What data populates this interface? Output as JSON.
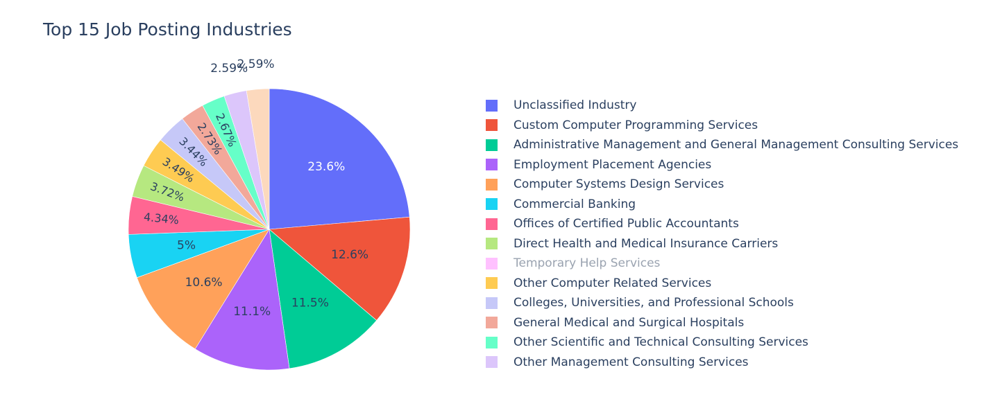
{
  "chart_data": {
    "type": "pie",
    "title": "Top 15 Job Posting Industries",
    "legend_position": "right",
    "direction": "clockwise",
    "sort": "descending",
    "slices": [
      {
        "label": "Unclassified Industry",
        "value": 23.6,
        "text": "23.6%",
        "color": "#636efa",
        "textcolor": "#ffffff",
        "visible": true
      },
      {
        "label": "Custom Computer Programming Services",
        "value": 12.6,
        "text": "12.6%",
        "color": "#EF553B",
        "textcolor": "#2a3f5f",
        "visible": true
      },
      {
        "label": "Administrative Management and General Management Consulting Services",
        "value": 11.5,
        "text": "11.5%",
        "color": "#00cc96",
        "textcolor": "#2a3f5f",
        "visible": true
      },
      {
        "label": "Employment Placement Agencies",
        "value": 11.1,
        "text": "11.1%",
        "color": "#ab63fa",
        "textcolor": "#2a3f5f",
        "visible": true
      },
      {
        "label": "Computer Systems Design Services",
        "value": 10.6,
        "text": "10.6%",
        "color": "#FFA15A",
        "textcolor": "#2a3f5f",
        "visible": true
      },
      {
        "label": "Commercial Banking",
        "value": 5.0,
        "text": "5%",
        "color": "#19d3f3",
        "textcolor": "#2a3f5f",
        "visible": true
      },
      {
        "label": "Offices of Certified Public Accountants",
        "value": 4.34,
        "text": "4.34%",
        "color": "#FF6692",
        "textcolor": "#2a3f5f",
        "visible": true
      },
      {
        "label": "Direct Health and Medical Insurance Carriers",
        "value": 3.72,
        "text": "3.72%",
        "color": "#B6E880",
        "textcolor": "#2a3f5f",
        "visible": true
      },
      {
        "label": "Temporary Help Services",
        "value": 0,
        "text": "",
        "color": "#FF97FF",
        "textcolor": "#2a3f5f",
        "visible": false
      },
      {
        "label": "Other Computer Related Services",
        "value": 3.49,
        "text": "3.49%",
        "color": "#FECB52",
        "textcolor": "#2a3f5f",
        "visible": true
      },
      {
        "label": "Colleges, Universities, and Professional Schools",
        "value": 3.44,
        "text": "3.44%",
        "color": "#c6c8f8",
        "textcolor": "#2a3f5f",
        "visible": true
      },
      {
        "label": "General Medical and Surgical Hospitals",
        "value": 2.73,
        "text": "2.73%",
        "color": "#f2a89a",
        "textcolor": "#2a3f5f",
        "visible": true
      },
      {
        "label": "Other Scientific and Technical Consulting Services",
        "value": 2.67,
        "text": "2.67%",
        "color": "#66ffc8",
        "textcolor": "#2a3f5f",
        "visible": true
      },
      {
        "label": "Other Management Consulting Services",
        "value": 2.59,
        "text": "2.59%",
        "color": "#dcc6fb",
        "textcolor": "#2a3f5f",
        "visible": true
      },
      {
        "label": "",
        "value": 2.59,
        "text": "2.59%",
        "color": "#fcd9bd",
        "textcolor": "#2a3f5f",
        "visible": true
      }
    ]
  }
}
